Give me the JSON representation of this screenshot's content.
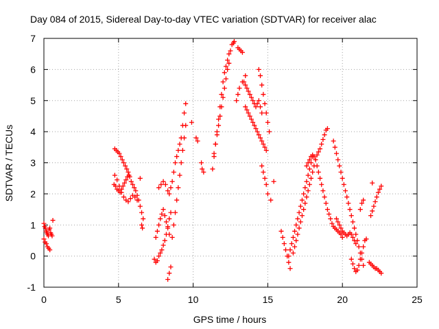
{
  "chart_data": {
    "type": "scatter",
    "title": "Day 084 of 2015, Sidereal Day-to-day VTEC variation (SDTVAR) for receiver alac",
    "xlabel": "GPS time / hours",
    "ylabel": "SDTVAR / TECUs",
    "xlim": [
      0,
      25
    ],
    "ylim": [
      -1,
      7
    ],
    "xticks": [
      "0",
      "5",
      "10",
      "15",
      "20",
      "25"
    ],
    "yticks": [
      "-1",
      "0",
      "1",
      "2",
      "3",
      "4",
      "5",
      "6",
      "7"
    ],
    "grid": true,
    "marker": "plus",
    "color": "#ff0000",
    "series": [
      {
        "x": [
          0.0,
          0.05,
          0.1,
          0.15,
          0.2,
          0.25,
          0.3,
          0.35,
          0.4,
          0.45,
          0.5,
          0.55,
          0.0,
          0.08,
          0.16,
          0.24,
          0.32,
          0.4,
          0.6,
          4.75,
          4.85,
          4.95,
          5.05,
          5.15,
          5.25,
          5.35,
          5.45,
          5.55,
          5.65,
          5.75,
          5.85,
          5.95,
          6.05,
          6.15,
          6.25,
          6.35,
          6.45,
          6.55,
          6.65,
          4.7,
          4.8,
          4.9,
          5.0,
          5.1,
          5.2,
          5.3,
          5.4,
          5.5,
          5.6,
          5.7,
          4.75,
          4.9,
          5.05,
          5.2,
          5.35,
          5.5,
          5.65,
          5.8,
          5.95,
          6.1,
          6.25,
          6.45,
          6.55,
          6.6,
          7.4,
          7.5,
          7.6,
          7.7,
          7.8,
          7.9,
          8.0,
          8.1,
          8.2,
          8.3,
          8.4,
          8.5,
          7.5,
          7.6,
          7.7,
          7.8,
          7.9,
          8.0,
          8.1,
          8.2,
          8.3,
          8.4,
          7.7,
          7.85,
          8.0,
          8.15,
          8.3,
          8.4,
          8.5,
          8.6,
          8.7,
          8.8,
          8.9,
          9.0,
          9.1,
          9.2,
          9.3,
          9.4,
          9.5,
          8.3,
          8.4,
          8.5,
          8.6,
          8.7,
          8.8,
          8.9,
          9.0,
          9.1,
          9.2,
          9.3,
          9.4,
          9.5,
          9.9,
          10.2,
          10.3,
          10.55,
          10.6,
          10.7,
          11.3,
          11.4,
          11.5,
          11.6,
          11.7,
          11.8,
          11.9,
          12.0,
          12.1,
          12.2,
          12.3,
          12.4,
          12.5,
          12.6,
          12.7,
          12.75,
          11.4,
          11.5,
          11.6,
          11.7,
          11.8,
          11.9,
          12.0,
          12.1,
          12.2,
          12.3,
          12.4,
          13.0,
          13.1,
          13.2,
          13.3,
          12.9,
          13.0,
          13.1,
          13.3,
          13.5,
          13.4,
          13.5,
          13.6,
          13.7,
          13.8,
          13.9,
          14.0,
          14.1,
          14.2,
          14.3,
          14.4,
          14.5,
          14.6,
          13.5,
          13.6,
          13.7,
          13.8,
          13.9,
          14.0,
          14.1,
          14.2,
          14.3,
          14.4,
          14.5,
          14.6,
          14.7,
          14.8,
          14.9,
          14.4,
          14.5,
          14.6,
          14.7,
          14.8,
          14.9,
          15.0,
          15.1,
          14.6,
          14.7,
          14.8,
          14.9,
          15.0,
          15.2,
          15.4,
          15.9,
          16.0,
          16.1,
          16.2,
          16.3,
          16.4,
          16.5,
          16.4,
          16.5,
          16.6,
          16.7,
          16.8,
          16.9,
          17.0,
          17.1,
          17.2,
          17.3,
          17.4,
          17.5,
          17.6,
          17.7,
          17.8,
          17.9,
          18.0,
          16.7,
          16.8,
          16.9,
          17.0,
          17.1,
          17.2,
          17.3,
          17.4,
          17.5,
          17.6,
          17.7,
          17.8,
          17.9,
          18.0,
          18.1,
          18.2,
          18.3,
          18.4,
          18.5,
          18.6,
          18.7,
          18.8,
          18.9,
          19.0,
          17.6,
          17.7,
          17.8,
          17.9,
          18.0,
          18.1,
          18.2,
          18.3,
          18.4,
          18.5,
          18.6,
          18.7,
          18.8,
          18.9,
          19.0,
          19.1,
          19.2,
          19.3,
          19.4,
          19.5,
          19.6,
          19.7,
          19.8,
          19.9,
          20.0,
          19.4,
          19.5,
          19.6,
          19.7,
          19.8,
          19.9,
          20.0,
          20.1,
          20.2,
          20.3,
          20.4,
          20.5,
          20.6,
          20.7,
          20.8,
          20.9,
          21.0,
          21.1,
          21.2,
          21.3,
          21.4,
          19.6,
          19.7,
          19.8,
          19.9,
          20.0,
          20.1,
          20.2,
          20.3,
          20.4,
          20.5,
          20.6,
          20.7,
          20.8,
          20.9,
          20.6,
          20.7,
          20.8,
          20.9,
          21.0,
          21.1,
          21.2,
          21.3,
          21.4,
          21.5,
          21.6,
          21.8,
          21.9,
          22.0,
          22.1,
          22.2,
          22.3,
          22.4,
          22.5,
          22.6,
          21.9,
          22.0,
          22.1,
          22.2,
          22.3,
          22.4,
          22.5,
          22.6,
          21.2,
          21.3,
          21.4,
          22.0
        ],
        "y": [
          1.05,
          0.95,
          0.9,
          0.8,
          0.75,
          0.7,
          0.65,
          0.85,
          0.9,
          0.75,
          0.7,
          0.65,
          0.55,
          0.45,
          0.4,
          0.3,
          0.25,
          0.2,
          1.15,
          3.45,
          3.4,
          3.35,
          3.3,
          3.2,
          3.1,
          3.0,
          2.9,
          2.8,
          2.7,
          2.55,
          2.4,
          2.3,
          2.2,
          2.1,
          1.95,
          1.8,
          1.6,
          1.4,
          1.2,
          2.3,
          2.25,
          2.15,
          2.1,
          2.05,
          2.15,
          2.25,
          2.35,
          2.45,
          2.55,
          2.6,
          2.6,
          2.45,
          2.25,
          2.05,
          1.9,
          1.8,
          1.75,
          1.85,
          1.95,
          1.9,
          1.8,
          2.5,
          1.0,
          0.9,
          -0.1,
          -0.2,
          -0.15,
          0.0,
          0.1,
          0.2,
          0.35,
          0.5,
          0.7,
          0.95,
          1.2,
          1.4,
          0.6,
          0.8,
          1.0,
          1.2,
          1.35,
          1.5,
          1.3,
          1.1,
          0.9,
          0.7,
          2.2,
          2.3,
          2.4,
          2.3,
          2.1,
          2.0,
          2.2,
          2.4,
          2.7,
          3.0,
          3.2,
          3.4,
          3.6,
          3.8,
          4.2,
          4.6,
          4.9,
          -0.75,
          -0.55,
          -0.35,
          0.6,
          1.0,
          1.4,
          1.8,
          2.2,
          2.6,
          3.0,
          3.4,
          3.8,
          4.2,
          4.3,
          3.8,
          3.7,
          3.0,
          2.8,
          2.7,
          2.8,
          3.2,
          3.6,
          4.0,
          4.4,
          4.8,
          5.2,
          5.6,
          5.9,
          6.1,
          6.3,
          6.5,
          6.6,
          6.8,
          6.85,
          6.9,
          3.3,
          3.6,
          3.9,
          4.2,
          4.5,
          4.8,
          5.1,
          5.4,
          5.7,
          6.0,
          6.2,
          6.7,
          6.65,
          6.6,
          6.55,
          5.0,
          5.2,
          5.4,
          5.6,
          5.8,
          5.6,
          5.5,
          5.4,
          5.3,
          5.2,
          5.1,
          5.0,
          4.9,
          4.8,
          4.9,
          5.0,
          4.8,
          4.6,
          4.8,
          4.7,
          4.6,
          4.5,
          4.4,
          4.3,
          4.2,
          4.1,
          4.0,
          3.9,
          3.8,
          3.7,
          3.6,
          3.5,
          3.4,
          6.0,
          5.8,
          5.5,
          5.2,
          4.9,
          4.6,
          4.3,
          4.0,
          2.9,
          2.7,
          2.5,
          2.3,
          2.0,
          1.8,
          2.4,
          0.8,
          0.6,
          0.4,
          0.2,
          0.0,
          -0.2,
          -0.4,
          0.0,
          0.2,
          0.4,
          0.6,
          0.8,
          1.0,
          1.2,
          1.4,
          1.6,
          1.8,
          2.0,
          2.2,
          2.4,
          2.6,
          2.8,
          3.0,
          3.2,
          0.1,
          0.3,
          0.5,
          0.7,
          0.9,
          1.1,
          1.3,
          1.5,
          1.7,
          1.9,
          2.1,
          2.3,
          2.5,
          2.7,
          2.9,
          3.1,
          3.25,
          3.35,
          3.45,
          3.6,
          3.75,
          3.9,
          4.05,
          4.1,
          2.9,
          3.0,
          3.1,
          3.2,
          3.25,
          3.2,
          3.1,
          2.9,
          2.7,
          2.5,
          2.3,
          2.1,
          1.9,
          1.7,
          1.5,
          1.35,
          1.2,
          1.05,
          0.95,
          0.9,
          0.85,
          0.8,
          0.75,
          0.7,
          0.6,
          3.7,
          3.5,
          3.3,
          3.1,
          2.9,
          2.7,
          2.5,
          2.3,
          2.1,
          1.9,
          1.7,
          1.5,
          1.3,
          1.1,
          0.9,
          0.7,
          0.5,
          0.3,
          0.1,
          -0.1,
          -0.3,
          1.2,
          1.1,
          1.0,
          0.9,
          0.8,
          0.75,
          0.7,
          0.65,
          0.7,
          0.75,
          0.7,
          0.6,
          0.5,
          0.4,
          -0.1,
          -0.25,
          -0.4,
          -0.5,
          -0.45,
          -0.3,
          -0.1,
          0.1,
          0.3,
          0.5,
          0.55,
          -0.2,
          -0.25,
          -0.3,
          -0.35,
          -0.4,
          -0.4,
          -0.45,
          -0.5,
          -0.55,
          1.3,
          1.45,
          1.6,
          1.75,
          1.9,
          2.05,
          2.15,
          2.25,
          1.5,
          1.7,
          1.8,
          2.35
        ]
      }
    ]
  }
}
